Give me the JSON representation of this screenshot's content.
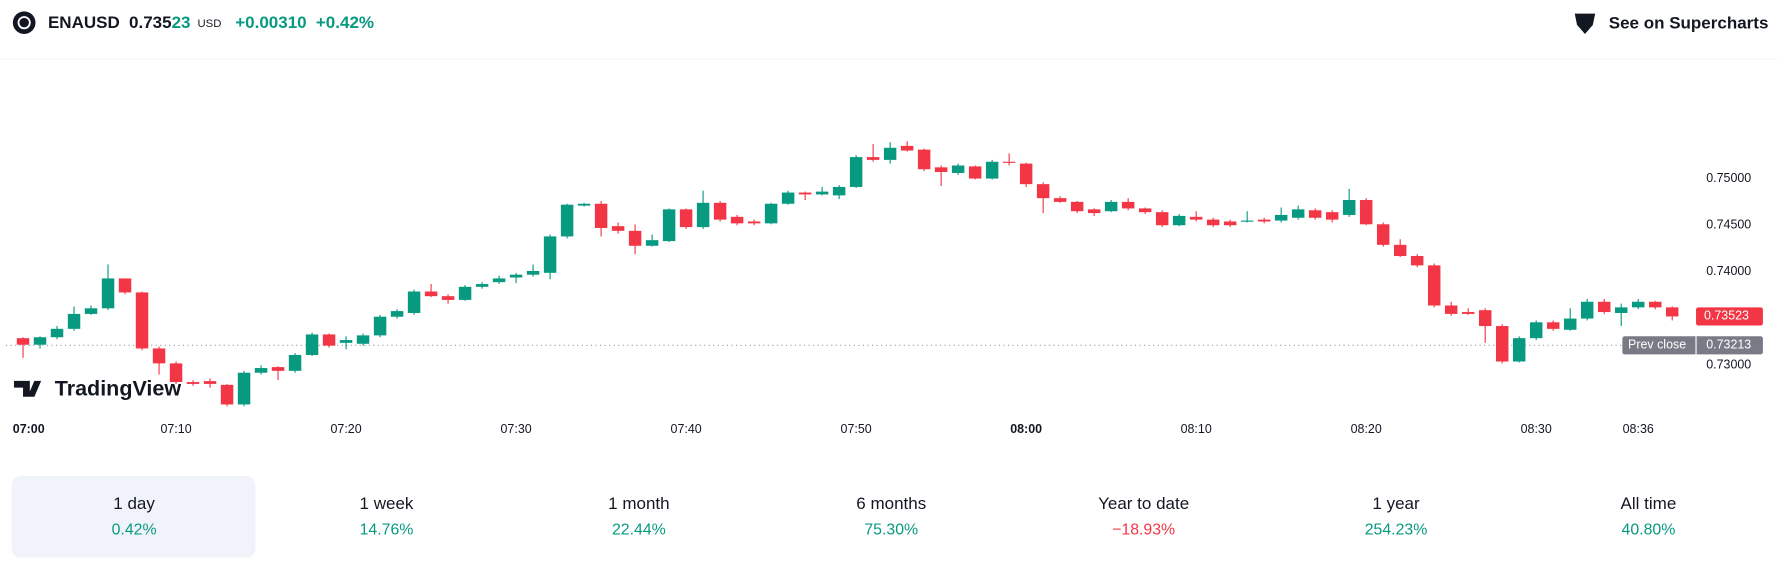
{
  "header": {
    "symbol": "ENAUSD",
    "price_main": "0.735",
    "price_small": "23",
    "currency": "USD",
    "change": "+0.00310",
    "change_pct": "+0.42%",
    "link": "See on Supercharts"
  },
  "logo": "TradingView",
  "chart_data": {
    "type": "candlestick",
    "up_color": "#089981",
    "down_color": "#f23645",
    "x": [
      "07:01",
      "07:02",
      "07:03",
      "07:04",
      "07:05",
      "07:06",
      "07:07",
      "07:08",
      "07:09",
      "07:10",
      "07:11",
      "07:12",
      "07:13",
      "07:14",
      "07:15",
      "07:16",
      "07:17",
      "07:18",
      "07:19",
      "07:20",
      "07:21",
      "07:22",
      "07:23",
      "07:24",
      "07:25",
      "07:26",
      "07:27",
      "07:28",
      "07:29",
      "07:30",
      "07:31",
      "07:32",
      "07:33",
      "07:34",
      "07:35",
      "07:36",
      "07:37",
      "07:38",
      "07:39",
      "07:40",
      "07:41",
      "07:42",
      "07:43",
      "07:44",
      "07:45",
      "07:46",
      "07:47",
      "07:48",
      "07:49",
      "07:50",
      "07:51",
      "07:52",
      "07:53",
      "07:54",
      "07:55",
      "07:56",
      "07:57",
      "07:58",
      "07:59",
      "08:00",
      "08:01",
      "08:02",
      "08:03",
      "08:04",
      "08:05",
      "08:06",
      "08:07",
      "08:08",
      "08:09",
      "08:10",
      "08:11",
      "08:12",
      "08:13",
      "08:14",
      "08:15",
      "08:16",
      "08:17",
      "08:18",
      "08:19",
      "08:20",
      "08:21",
      "08:22",
      "08:23",
      "08:24",
      "08:25",
      "08:26",
      "08:27",
      "08:28",
      "08:29",
      "08:30",
      "08:31",
      "08:32",
      "08:33",
      "08:34",
      "08:35",
      "08:36",
      "08:37",
      "08:38"
    ],
    "open": [
      0.7329,
      0.7322,
      0.733,
      0.7339,
      0.7355,
      0.7361,
      0.7393,
      0.7378,
      0.7318,
      0.7302,
      0.7282,
      0.7283,
      0.7279,
      0.7258,
      0.7292,
      0.7298,
      0.7294,
      0.7311,
      0.7333,
      0.7324,
      0.7323,
      0.7332,
      0.7352,
      0.7356,
      0.7379,
      0.7374,
      0.737,
      0.7384,
      0.7389,
      0.7394,
      0.7397,
      0.7399,
      0.7438,
      0.7471,
      0.7473,
      0.7449,
      0.7444,
      0.7428,
      0.7433,
      0.7467,
      0.7448,
      0.7474,
      0.7459,
      0.7454,
      0.7452,
      0.7473,
      0.7485,
      0.7483,
      0.7482,
      0.7491,
      0.7523,
      0.752,
      0.7535,
      0.7531,
      0.7512,
      0.7506,
      0.7513,
      0.75,
      0.7518,
      0.7516,
      0.7494,
      0.7479,
      0.7475,
      0.7467,
      0.7465,
      0.7475,
      0.7468,
      0.7464,
      0.745,
      0.7459,
      0.7456,
      0.7454,
      0.7454,
      0.7456,
      0.7455,
      0.7458,
      0.7466,
      0.7464,
      0.7461,
      0.7477,
      0.7451,
      0.7429,
      0.7417,
      0.7407,
      0.7364,
      0.7357,
      0.7359,
      0.7342,
      0.7304,
      0.7329,
      0.7346,
      0.7338,
      0.735,
      0.7368,
      0.7356,
      0.7362,
      0.7368,
      0.7362
    ],
    "high": [
      0.733,
      0.7331,
      0.7342,
      0.7363,
      0.7364,
      0.7408,
      0.7393,
      0.7379,
      0.732,
      0.7304,
      0.7284,
      0.7286,
      0.728,
      0.7294,
      0.73,
      0.7299,
      0.7313,
      0.7335,
      0.7334,
      0.7331,
      0.7334,
      0.7354,
      0.736,
      0.7381,
      0.7387,
      0.7376,
      0.7386,
      0.7389,
      0.7396,
      0.7399,
      0.7408,
      0.744,
      0.7473,
      0.7474,
      0.7476,
      0.7453,
      0.7451,
      0.744,
      0.7468,
      0.7468,
      0.7487,
      0.7476,
      0.7461,
      0.7456,
      0.7474,
      0.7487,
      0.7486,
      0.7491,
      0.7493,
      0.7525,
      0.7537,
      0.7539,
      0.754,
      0.7532,
      0.7514,
      0.7516,
      0.7514,
      0.752,
      0.7527,
      0.7517,
      0.7496,
      0.7481,
      0.7476,
      0.7468,
      0.7477,
      0.7479,
      0.7469,
      0.7466,
      0.7462,
      0.7465,
      0.7458,
      0.7456,
      0.7465,
      0.7458,
      0.7469,
      0.7471,
      0.7468,
      0.7466,
      0.7489,
      0.7479,
      0.7453,
      0.7435,
      0.7419,
      0.7409,
      0.7368,
      0.7361,
      0.7361,
      0.7344,
      0.7331,
      0.7348,
      0.7348,
      0.7361,
      0.7371,
      0.7371,
      0.7366,
      0.7371,
      0.7369,
      0.7363
    ],
    "low": [
      0.7308,
      0.7318,
      0.7328,
      0.7337,
      0.7354,
      0.7359,
      0.7376,
      0.7316,
      0.729,
      0.728,
      0.7278,
      0.7276,
      0.7256,
      0.7256,
      0.729,
      0.7284,
      0.7292,
      0.731,
      0.7319,
      0.7317,
      0.7321,
      0.733,
      0.735,
      0.7354,
      0.7373,
      0.7366,
      0.7369,
      0.7382,
      0.7387,
      0.7388,
      0.7395,
      0.7392,
      0.7436,
      0.747,
      0.7438,
      0.7441,
      0.7419,
      0.7427,
      0.7432,
      0.7446,
      0.7446,
      0.7454,
      0.745,
      0.745,
      0.7451,
      0.7472,
      0.7477,
      0.7482,
      0.7478,
      0.749,
      0.7518,
      0.7516,
      0.7529,
      0.7508,
      0.7492,
      0.7504,
      0.7499,
      0.7499,
      0.7514,
      0.7491,
      0.7463,
      0.7474,
      0.7463,
      0.746,
      0.7464,
      0.7466,
      0.7462,
      0.7448,
      0.7449,
      0.7454,
      0.7448,
      0.7448,
      0.7453,
      0.7452,
      0.7453,
      0.7456,
      0.7456,
      0.7453,
      0.7459,
      0.745,
      0.7427,
      0.7416,
      0.7405,
      0.7362,
      0.7353,
      0.7354,
      0.7324,
      0.7302,
      0.7303,
      0.7327,
      0.7337,
      0.7337,
      0.7348,
      0.7355,
      0.7342,
      0.736,
      0.736,
      0.7348
    ],
    "close": [
      0.7322,
      0.733,
      0.7339,
      0.7355,
      0.7361,
      0.7393,
      0.7378,
      0.7318,
      0.7302,
      0.7282,
      0.728,
      0.728,
      0.7258,
      0.7292,
      0.7297,
      0.7294,
      0.7311,
      0.7333,
      0.7321,
      0.7327,
      0.7332,
      0.7352,
      0.7358,
      0.7379,
      0.7374,
      0.737,
      0.7384,
      0.7387,
      0.7393,
      0.7397,
      0.7401,
      0.7438,
      0.7472,
      0.7473,
      0.7447,
      0.7444,
      0.7428,
      0.7434,
      0.7467,
      0.7448,
      0.7474,
      0.7456,
      0.7452,
      0.7452,
      0.7473,
      0.7485,
      0.7483,
      0.7486,
      0.7491,
      0.7523,
      0.752,
      0.7533,
      0.753,
      0.751,
      0.7507,
      0.7514,
      0.75,
      0.7518,
      0.7517,
      0.7494,
      0.7479,
      0.7475,
      0.7465,
      0.7463,
      0.7475,
      0.7468,
      0.7464,
      0.745,
      0.746,
      0.7456,
      0.745,
      0.745,
      0.7455,
      0.7454,
      0.7461,
      0.7467,
      0.7458,
      0.7456,
      0.7477,
      0.7451,
      0.7429,
      0.7417,
      0.7407,
      0.7364,
      0.7355,
      0.7355,
      0.7342,
      0.7304,
      0.7329,
      0.7346,
      0.7339,
      0.735,
      0.7368,
      0.7357,
      0.7362,
      0.7368,
      0.7362,
      0.73523
    ],
    "xlim": [
      "07:00",
      "08:39"
    ],
    "xticks": [
      "07:00",
      "07:10",
      "07:20",
      "07:30",
      "07:40",
      "07:50",
      "08:00",
      "08:10",
      "08:20",
      "08:30",
      "08:36"
    ],
    "ylim": [
      0.7242,
      0.7616
    ],
    "yticks": [
      {
        "value": 0.75,
        "label": "0.75000"
      },
      {
        "value": 0.745,
        "label": "0.74500"
      },
      {
        "value": 0.74,
        "label": "0.74000"
      },
      {
        "value": 0.73,
        "label": "0.73000"
      }
    ],
    "last_price": {
      "value": 0.73523,
      "label": "0.73523"
    },
    "prev_close": {
      "name": "Prev close",
      "value": 0.73213,
      "label": "0.73213"
    }
  },
  "periods": {
    "selected": 0,
    "items": [
      {
        "label": "1 day",
        "change": "0.42%",
        "color": "#089981"
      },
      {
        "label": "1 week",
        "change": "14.76%",
        "color": "#089981"
      },
      {
        "label": "1 month",
        "change": "22.44%",
        "color": "#089981"
      },
      {
        "label": "6 months",
        "change": "75.30%",
        "color": "#089981"
      },
      {
        "label": "Year to date",
        "change": "−18.93%",
        "color": "#f23645"
      },
      {
        "label": "1 year",
        "change": "254.23%",
        "color": "#089981"
      },
      {
        "label": "All time",
        "change": "40.80%",
        "color": "#089981"
      }
    ]
  }
}
